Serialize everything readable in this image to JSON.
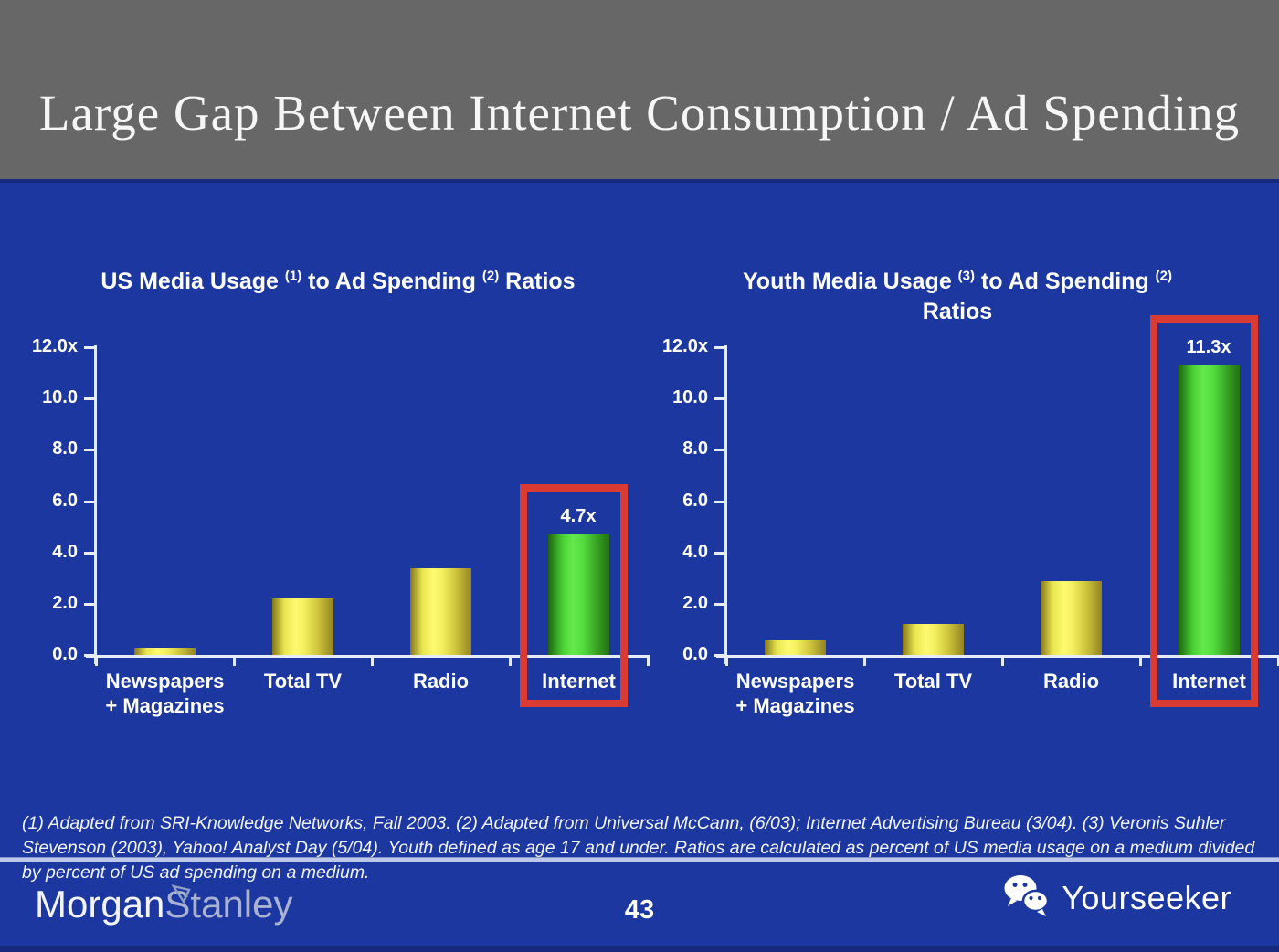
{
  "header": {
    "title": "Large Gap Between Internet Consumption / Ad Spending"
  },
  "colors": {
    "slide_background": "#1c38a0",
    "header_background": "#676767",
    "bar_yellow": "#f4f060",
    "bar_green": "#55dd40",
    "highlight_red": "#d93a31",
    "axis_line": "#e7ecfb",
    "separator": "#bcc7ea"
  },
  "chart_data": [
    {
      "type": "bar",
      "title": "US Media Usage (1) to Ad Spending (2) Ratios",
      "title_segments": [
        {
          "text": "US Media Usage "
        },
        {
          "sup": "(1)"
        },
        {
          "text": " to Ad Spending "
        },
        {
          "sup": "(2)"
        },
        {
          "text": " Ratios"
        }
      ],
      "categories": [
        "Newspapers\n+ Magazines",
        "Total TV",
        "Radio",
        "Internet"
      ],
      "values": [
        0.3,
        2.2,
        3.4,
        4.7
      ],
      "bar_labels": [
        null,
        null,
        null,
        "4.7x"
      ],
      "bar_colors": [
        "yellow",
        "yellow",
        "yellow",
        "green"
      ],
      "yticks": [
        "12.0x",
        "10.0",
        "8.0",
        "6.0",
        "4.0",
        "2.0",
        "0.0"
      ],
      "ylim": [
        0,
        12
      ],
      "xlabel": "",
      "ylabel": "",
      "grid": false,
      "legend": "none",
      "highlight_index": 3
    },
    {
      "type": "bar",
      "title": "Youth Media Usage (3) to Ad Spending (2) Ratios",
      "title_segments": [
        {
          "text": "Youth Media Usage "
        },
        {
          "sup": "(3)"
        },
        {
          "text": " to Ad Spending "
        },
        {
          "sup": "(2)"
        },
        {
          "text": " Ratios"
        }
      ],
      "categories": [
        "Newspapers\n+ Magazines",
        "Total TV",
        "Radio",
        "Internet"
      ],
      "values": [
        0.6,
        1.2,
        2.9,
        11.3
      ],
      "bar_labels": [
        null,
        null,
        null,
        "11.3x"
      ],
      "bar_colors": [
        "yellow",
        "yellow",
        "yellow",
        "green"
      ],
      "yticks": [
        "12.0x",
        "10.0",
        "8.0",
        "6.0",
        "4.0",
        "2.0",
        "0.0"
      ],
      "ylim": [
        0,
        12
      ],
      "xlabel": "",
      "ylabel": "",
      "grid": false,
      "legend": "none",
      "highlight_index": 3
    }
  ],
  "footnote": {
    "text": "(1) Adapted from SRI-Knowledge Networks, Fall 2003.  (2) Adapted from Universal McCann, (6/03); Internet Advertising Bureau (3/04). (3) Veronis Suhler Stevenson (2003), Yahoo! Analyst Day (5/04).  Youth defined as age 17 and under.  Ratios are calculated as percent of US media usage on a medium divided by percent of US ad spending on a medium."
  },
  "footer": {
    "brand_left_part1": "Morgan",
    "brand_left_part2": "Stanley",
    "page_number": "43",
    "brand_right": "Yourseeker",
    "icons": {
      "wechat": "wechat-chat-bubbles",
      "morgan_triangle": "morgan-stanley-triangle-mark"
    }
  }
}
